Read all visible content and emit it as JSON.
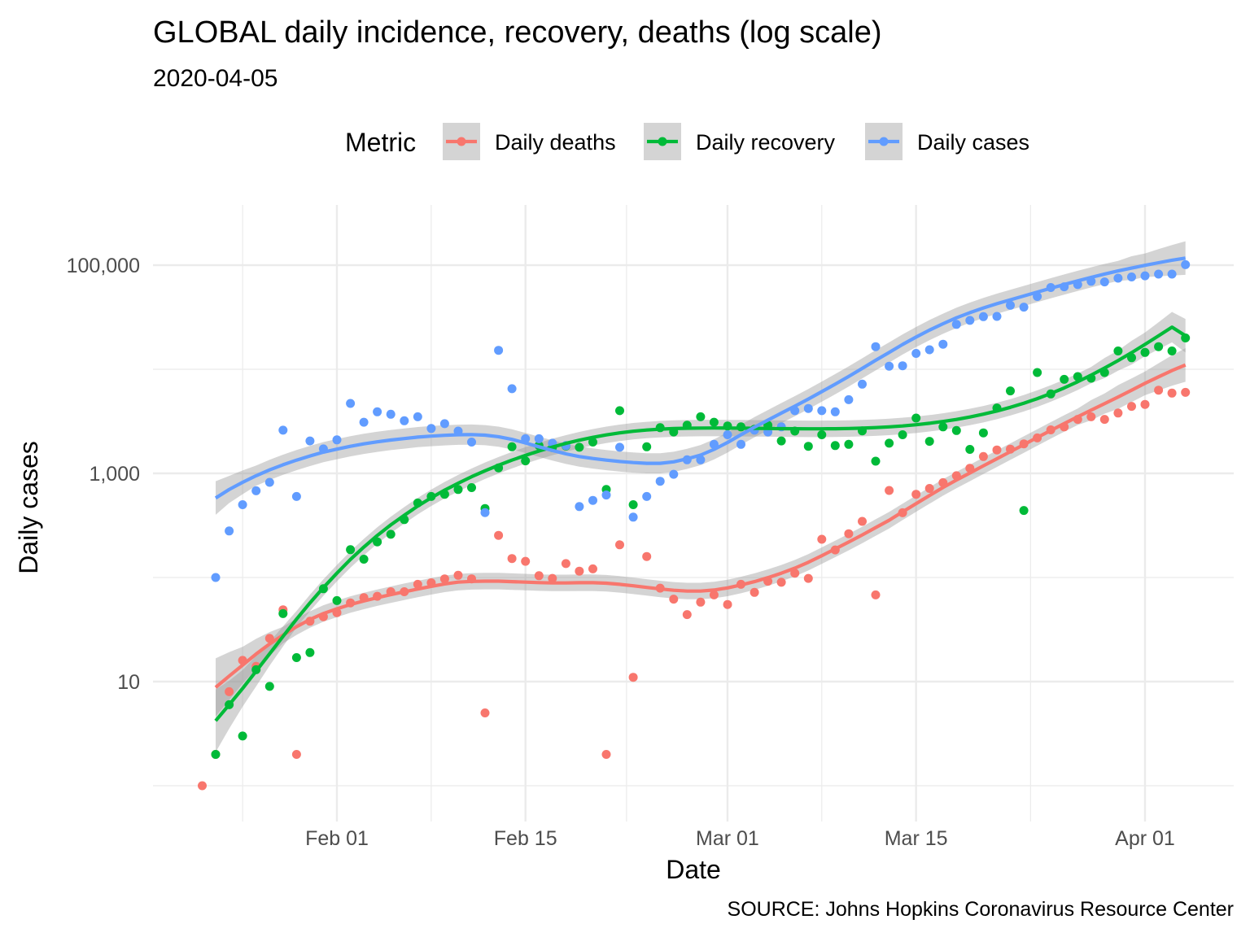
{
  "chart_data": {
    "type": "scatter",
    "title": "GLOBAL daily incidence, recovery, deaths  (log scale)",
    "subtitle": "2020-04-05",
    "xlabel": "Date",
    "ylabel": "Daily cases",
    "caption": "SOURCE: Johns Hopkins Coronavirus Resource Center",
    "legend": {
      "title": "Metric",
      "position": "top"
    },
    "y_scale": "log10",
    "ylim": [
      1,
      400000
    ],
    "xlim": [
      "2020-01-21",
      "2020-04-07"
    ],
    "y_ticks": [
      {
        "value": 10,
        "label": "10"
      },
      {
        "value": 1000,
        "label": "1,000"
      },
      {
        "value": 100000,
        "label": "100,000"
      }
    ],
    "x_ticks": [
      {
        "date": "2020-02-01",
        "label": "Feb 01"
      },
      {
        "date": "2020-02-15",
        "label": "Feb 15"
      },
      {
        "date": "2020-03-01",
        "label": "Mar 01"
      },
      {
        "date": "2020-03-15",
        "label": "Mar 15"
      },
      {
        "date": "2020-04-01",
        "label": "Apr 01"
      }
    ],
    "grid": true,
    "has_smooth_lines": true,
    "has_confidence_bands": true,
    "x": [
      "2020-01-22",
      "2020-01-23",
      "2020-01-24",
      "2020-01-25",
      "2020-01-26",
      "2020-01-27",
      "2020-01-28",
      "2020-01-29",
      "2020-01-30",
      "2020-01-31",
      "2020-02-01",
      "2020-02-02",
      "2020-02-03",
      "2020-02-04",
      "2020-02-05",
      "2020-02-06",
      "2020-02-07",
      "2020-02-08",
      "2020-02-09",
      "2020-02-10",
      "2020-02-11",
      "2020-02-12",
      "2020-02-13",
      "2020-02-14",
      "2020-02-15",
      "2020-02-16",
      "2020-02-17",
      "2020-02-18",
      "2020-02-19",
      "2020-02-20",
      "2020-02-21",
      "2020-02-22",
      "2020-02-23",
      "2020-02-24",
      "2020-02-25",
      "2020-02-26",
      "2020-02-27",
      "2020-02-28",
      "2020-02-29",
      "2020-03-01",
      "2020-03-02",
      "2020-03-03",
      "2020-03-04",
      "2020-03-05",
      "2020-03-06",
      "2020-03-07",
      "2020-03-08",
      "2020-03-09",
      "2020-03-10",
      "2020-03-11",
      "2020-03-12",
      "2020-03-13",
      "2020-03-14",
      "2020-03-15",
      "2020-03-16",
      "2020-03-17",
      "2020-03-18",
      "2020-03-19",
      "2020-03-20",
      "2020-03-21",
      "2020-03-22",
      "2020-03-23",
      "2020-03-24",
      "2020-03-25",
      "2020-03-26",
      "2020-03-27",
      "2020-03-28",
      "2020-03-29",
      "2020-03-30",
      "2020-03-31",
      "2020-04-01",
      "2020-04-02",
      "2020-04-03",
      "2020-04-04"
    ],
    "series": [
      {
        "name": "Daily deaths",
        "color": "#F8766D",
        "values": [
          1,
          2,
          8,
          16,
          14,
          26,
          49,
          2,
          38,
          42,
          46,
          57,
          64,
          66,
          73,
          73,
          86,
          89,
          97,
          105,
          97,
          5,
          254,
          152,
          143,
          104,
          98,
          136,
          115,
          121,
          2,
          206,
          11,
          159,
          79,
          62,
          44,
          58,
          68,
          55,
          86,
          72,
          92,
          90,
          110,
          98,
          233,
          184,
          263,
          346,
          68,
          685,
          419,
          630,
          717,
          815,
          949,
          1121,
          1450,
          1680,
          1710,
          1920,
          2190,
          2620,
          2800,
          3300,
          3500,
          3300,
          3800,
          4400,
          4600,
          6300,
          5900,
          6000
        ],
        "smooth": [
          6.8,
          8.8,
          11.3,
          14.4,
          18.4,
          23.0,
          28.0,
          33.7,
          39.5,
          45.1,
          50.0,
          55.0,
          59.5,
          64.0,
          68.4,
          72.9,
          77.5,
          82.2,
          86.8,
          90.2,
          91.8,
          92.3,
          92.3,
          91.3,
          90.3,
          89.3,
          88.7,
          88.7,
          89.1,
          89.1,
          88.1,
          85.9,
          83.2,
          80.3,
          77.6,
          75.4,
          74.1,
          74.1,
          75.8,
          79.4,
          84.7,
          91.3,
          99.7,
          110,
          123,
          140,
          162,
          188,
          219,
          256,
          302,
          355,
          427,
          512,
          613,
          733,
          863,
          1009,
          1183,
          1383,
          1617,
          1892,
          2213,
          2586,
          3015,
          3500,
          4048,
          4680,
          5418,
          6294,
          7320,
          8455,
          9714,
          11000
        ],
        "band_halfwidth": [
          2.1,
          1.9,
          1.7,
          1.5,
          1.4,
          1.3,
          1.2,
          1.2,
          1.2,
          1.2,
          1.2,
          1.2,
          1.2,
          1.2,
          1.2,
          1.2,
          1.2,
          1.2,
          1.2,
          1.2,
          1.2,
          1.2,
          1.2,
          1.2,
          1.2,
          1.2,
          1.2,
          1.2,
          1.2,
          1.2,
          1.2,
          1.2,
          1.2,
          1.2,
          1.2,
          1.2,
          1.2,
          1.2,
          1.2,
          1.2,
          1.2,
          1.2,
          1.2,
          1.2,
          1.2,
          1.2,
          1.2,
          1.2,
          1.2,
          1.2,
          1.2,
          1.2,
          1.2,
          1.2,
          1.2,
          1.2,
          1.2,
          1.2,
          1.2,
          1.2,
          1.2,
          1.2,
          1.2,
          1.2,
          1.2,
          1.2,
          1.25,
          1.25,
          1.3,
          1.3,
          1.3,
          1.35,
          1.4,
          1.45
        ]
      },
      {
        "name": "Daily recovery",
        "color": "#00BA38",
        "values": [
          null,
          2,
          6,
          3,
          13,
          9,
          45,
          17,
          19,
          78,
          60,
          185,
          150,
          220,
          260,
          360,
          520,
          600,
          630,
          700,
          730,
          460,
          1130,
          1800,
          1320,
          1850,
          1770,
          1830,
          1780,
          2000,
          700,
          4000,
          500,
          1800,
          2750,
          2500,
          2900,
          3500,
          3100,
          2850,
          2800,
          2650,
          2900,
          2050,
          2550,
          1820,
          2350,
          1850,
          1900,
          2560,
          1310,
          1950,
          2350,
          3400,
          2030,
          2800,
          2580,
          1700,
          2450,
          4250,
          6200,
          440,
          9300,
          5800,
          8000,
          8500,
          8200,
          9300,
          15000,
          12900,
          14500,
          16500,
          15000,
          20000
        ],
        "smooth": [
          3,
          4.2,
          6.0,
          8.6,
          12.6,
          18.5,
          27.2,
          39.8,
          57.0,
          80.0,
          110,
          149,
          196,
          253,
          320,
          396,
          485,
          583,
          690,
          805,
          929,
          1060,
          1197,
          1340,
          1489,
          1640,
          1792,
          1941,
          2085,
          2220,
          2343,
          2451,
          2540,
          2609,
          2660,
          2694,
          2714,
          2725,
          2727,
          2724,
          2718,
          2709,
          2700,
          2690,
          2683,
          2679,
          2679,
          2685,
          2698,
          2720,
          2752,
          2797,
          2855,
          2931,
          3028,
          3149,
          3298,
          3480,
          3703,
          3975,
          4310,
          4720,
          5226,
          5852,
          6628,
          7590,
          8784,
          10270,
          12120,
          14440,
          17350,
          20960,
          25400,
          21000
        ],
        "band_halfwidth": [
          2.5,
          2.0,
          1.7,
          1.5,
          1.4,
          1.3,
          1.25,
          1.2,
          1.2,
          1.2,
          1.2,
          1.2,
          1.2,
          1.2,
          1.2,
          1.2,
          1.2,
          1.2,
          1.2,
          1.2,
          1.2,
          1.2,
          1.2,
          1.2,
          1.2,
          1.2,
          1.2,
          1.2,
          1.2,
          1.2,
          1.2,
          1.2,
          1.2,
          1.2,
          1.2,
          1.2,
          1.2,
          1.2,
          1.2,
          1.2,
          1.2,
          1.2,
          1.2,
          1.2,
          1.2,
          1.2,
          1.2,
          1.2,
          1.2,
          1.2,
          1.2,
          1.2,
          1.2,
          1.2,
          1.2,
          1.2,
          1.2,
          1.2,
          1.2,
          1.2,
          1.2,
          1.2,
          1.2,
          1.2,
          1.2,
          1.2,
          1.2,
          1.25,
          1.25,
          1.3,
          1.3,
          1.35,
          1.4,
          1.45
        ]
      },
      {
        "name": "Daily cases",
        "color": "#619CFF",
        "values": [
          null,
          100,
          280,
          500,
          680,
          820,
          2600,
          600,
          2050,
          1720,
          2100,
          4700,
          3100,
          3900,
          3700,
          3200,
          3500,
          2700,
          3000,
          2550,
          2000,
          420,
          15200,
          6500,
          2150,
          2150,
          1950,
          1850,
          480,
          550,
          620,
          1780,
          380,
          600,
          840,
          980,
          1350,
          1350,
          1900,
          2350,
          1900,
          2600,
          2500,
          2800,
          4000,
          4200,
          4000,
          3900,
          5100,
          7200,
          16500,
          10700,
          10800,
          14200,
          15400,
          17400,
          27000,
          29500,
          32000,
          32200,
          41200,
          39500,
          50000,
          61000,
          62000,
          65000,
          70000,
          69000,
          75000,
          77000,
          79000,
          82000,
          82000,
          101000
        ],
        "smooth": [
          480,
          580,
          700,
          820,
          950,
          1080,
          1210,
          1340,
          1470,
          1600,
          1710,
          1820,
          1920,
          2010,
          2090,
          2160,
          2230,
          2280,
          2320,
          2350,
          2360,
          2330,
          2250,
          2120,
          1960,
          1800,
          1660,
          1540,
          1450,
          1390,
          1340,
          1300,
          1270,
          1250,
          1250,
          1290,
          1380,
          1500,
          1700,
          1980,
          2350,
          2780,
          3250,
          3790,
          4420,
          5180,
          6100,
          7200,
          8540,
          10200,
          12200,
          14500,
          17300,
          20400,
          23800,
          27400,
          31200,
          35000,
          38800,
          42600,
          46500,
          50600,
          55100,
          60000,
          65200,
          70700,
          76400,
          82200,
          88000,
          93800,
          99600,
          105500,
          111500,
          117000
        ],
        "band_halfwidth": [
          1.6,
          1.45,
          1.35,
          1.3,
          1.25,
          1.25,
          1.25,
          1.25,
          1.25,
          1.25,
          1.25,
          1.25,
          1.25,
          1.25,
          1.25,
          1.25,
          1.25,
          1.25,
          1.25,
          1.25,
          1.25,
          1.25,
          1.25,
          1.25,
          1.25,
          1.25,
          1.25,
          1.25,
          1.25,
          1.25,
          1.25,
          1.25,
          1.25,
          1.25,
          1.25,
          1.25,
          1.25,
          1.25,
          1.25,
          1.25,
          1.25,
          1.25,
          1.25,
          1.25,
          1.25,
          1.25,
          1.25,
          1.25,
          1.25,
          1.25,
          1.25,
          1.25,
          1.25,
          1.25,
          1.25,
          1.25,
          1.25,
          1.25,
          1.25,
          1.25,
          1.25,
          1.25,
          1.25,
          1.25,
          1.25,
          1.25,
          1.25,
          1.25,
          1.25,
          1.3,
          1.3,
          1.35,
          1.4,
          1.45
        ]
      }
    ]
  }
}
